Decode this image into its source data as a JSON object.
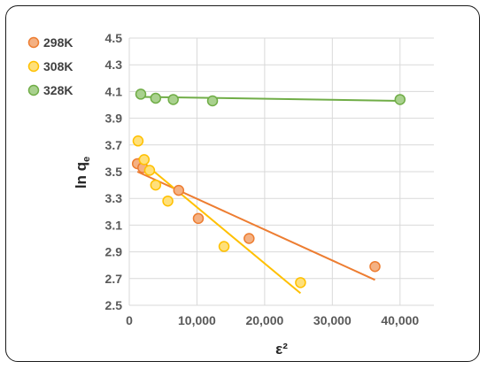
{
  "chart_data": {
    "type": "scatter",
    "title": "",
    "xlabel": "ε²",
    "ylabel": "ln qe",
    "ylabel_main": "ln q",
    "ylabel_sub": "e",
    "xlim": [
      0,
      45000
    ],
    "ylim": [
      2.5,
      4.5
    ],
    "xticks": [
      0,
      10000,
      20000,
      30000,
      40000
    ],
    "xtick_labels": [
      "0",
      "10,000",
      "20,000",
      "30,000",
      "40,000"
    ],
    "yticks": [
      2.5,
      2.7,
      2.9,
      3.1,
      3.3,
      3.5,
      3.7,
      3.9,
      4.1,
      4.3,
      4.5
    ],
    "ytick_labels": [
      "2.5",
      "2.7",
      "2.9",
      "3.1",
      "3.3",
      "3.5",
      "3.7",
      "3.9",
      "4.1",
      "4.3",
      "4.5"
    ],
    "grid": true,
    "legend_position": "top-left",
    "series": [
      {
        "name": "298K",
        "color": "#ED7D31",
        "fill": "#F4B183",
        "points": [
          [
            1200,
            3.56
          ],
          [
            2000,
            3.53
          ],
          [
            7300,
            3.36
          ],
          [
            10200,
            3.15
          ],
          [
            17700,
            3.0
          ],
          [
            36300,
            2.79
          ]
        ],
        "trendline": [
          [
            1200,
            3.5
          ],
          [
            36300,
            2.69
          ]
        ]
      },
      {
        "name": "308K",
        "color": "#FFC000",
        "fill": "#FFE07A",
        "points": [
          [
            1300,
            3.73
          ],
          [
            2200,
            3.59
          ],
          [
            3000,
            3.51
          ],
          [
            3900,
            3.4
          ],
          [
            5700,
            3.28
          ],
          [
            14000,
            2.94
          ],
          [
            25300,
            2.67
          ]
        ],
        "trendline": [
          [
            1300,
            3.6
          ],
          [
            25300,
            2.59
          ]
        ]
      },
      {
        "name": "328K",
        "color": "#70AD47",
        "fill": "#A9D18E",
        "points": [
          [
            1700,
            4.08
          ],
          [
            3900,
            4.05
          ],
          [
            6500,
            4.04
          ],
          [
            12300,
            4.03
          ],
          [
            40000,
            4.04
          ]
        ],
        "trendline": [
          [
            1700,
            4.06
          ],
          [
            40000,
            4.03
          ]
        ]
      }
    ]
  }
}
